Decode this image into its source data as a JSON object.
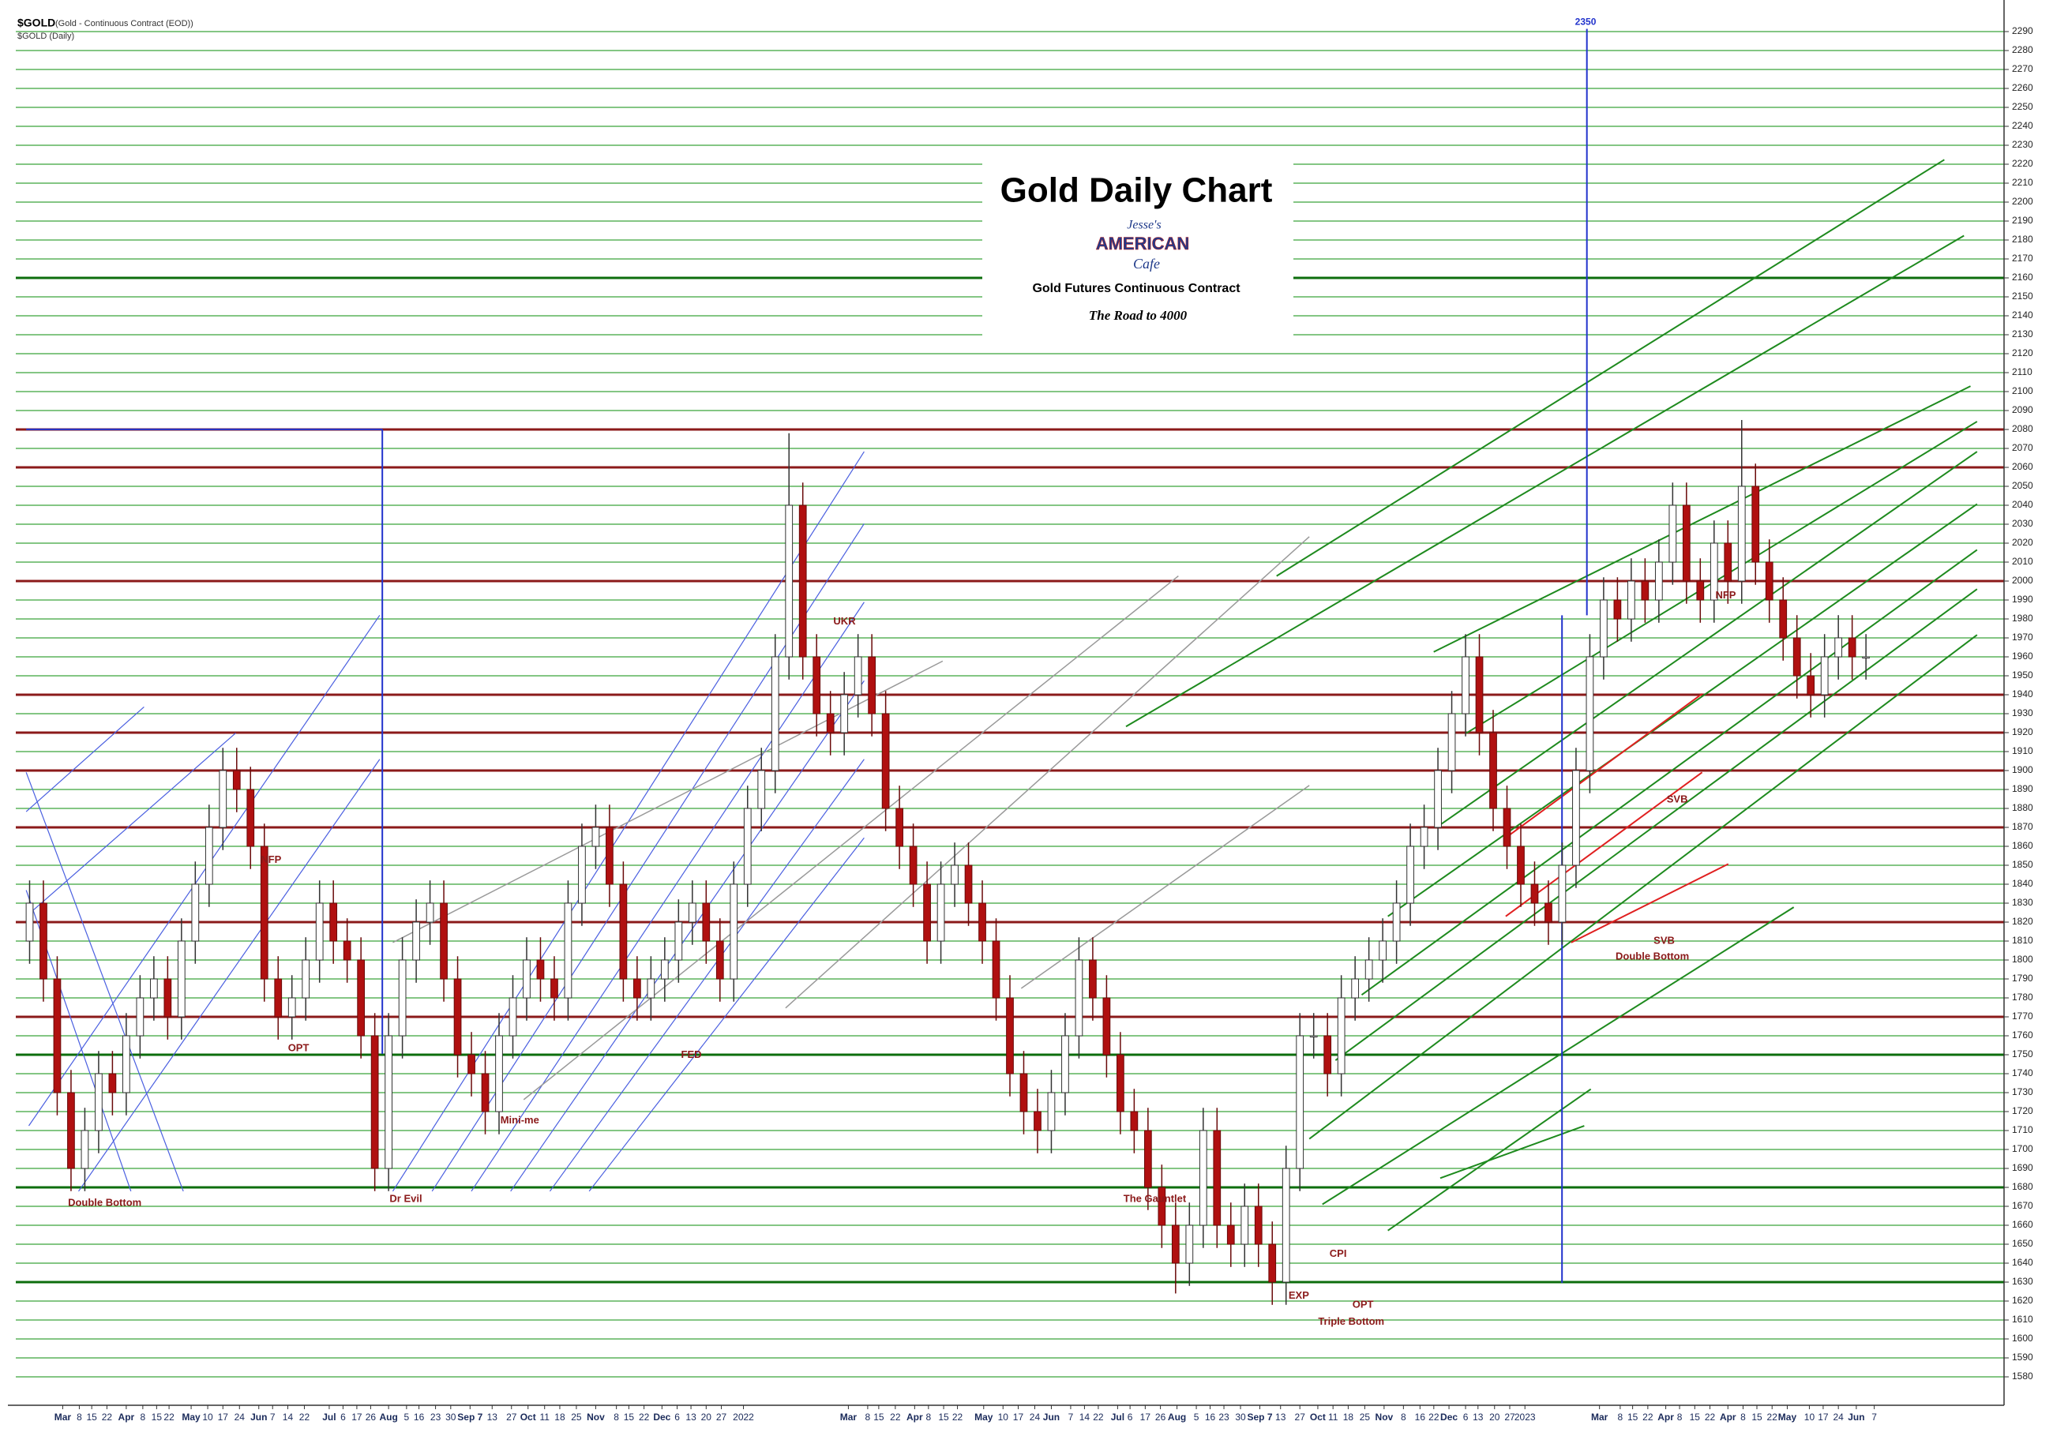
{
  "chart_data": {
    "type": "candlestick",
    "symbol": "$GOLD",
    "symbol_desc": "(Gold - Continuous Contract (EOD))",
    "symbol_period": "$GOLD (Daily)",
    "title": "Gold Daily Chart",
    "logo": [
      "Jesse's",
      "AMERICAN",
      "Cafe"
    ],
    "subtitle": "Gold Futures Continuous Contract",
    "tagline": "The Road to 4000",
    "marker_label": "2350",
    "up_color": "#ffffff",
    "down_color": "#b01010",
    "grid": true,
    "grid_color": "#3aa53a",
    "open": [
      1810,
      1830,
      1790,
      1730,
      1690,
      1710,
      1740,
      1730,
      1760,
      1780,
      1790,
      1770,
      1810,
      1840,
      1870,
      1900,
      1890,
      1860,
      1790,
      1770,
      1780,
      1800,
      1830,
      1810,
      1800,
      1760,
      1690,
      1760,
      1800,
      1820,
      1830,
      1790,
      1750,
      1740,
      1720,
      1760,
      1780,
      1800,
      1790,
      1780,
      1830,
      1860,
      1870,
      1840,
      1790,
      1780,
      1790,
      1800,
      1820,
      1830,
      1810,
      1790,
      1840,
      1880,
      1900,
      1960,
      2040,
      1960,
      1930,
      1920,
      1940,
      1960,
      1930,
      1880,
      1860,
      1840,
      1810,
      1840,
      1850,
      1830,
      1810,
      1780,
      1740,
      1720,
      1710,
      1730,
      1760,
      1800,
      1780,
      1750,
      1720,
      1710,
      1680,
      1660,
      1640,
      1660,
      1710,
      1660,
      1650,
      1670,
      1650,
      1630,
      1690,
      1760,
      1760,
      1740,
      1780,
      1790,
      1800,
      1810,
      1830,
      1860,
      1870,
      1900,
      1930,
      1960,
      1920,
      1880,
      1860,
      1840,
      1830,
      1820,
      1850,
      1900,
      1960,
      1990,
      1980,
      2000,
      1990,
      2010,
      2040,
      2000,
      1990,
      2020,
      2000,
      2050,
      2010,
      1990,
      1970,
      1950,
      1940,
      1960,
      1970,
      1960
    ],
    "high": [
      1842,
      1842,
      1802,
      1742,
      1722,
      1752,
      1752,
      1772,
      1792,
      1802,
      1802,
      1822,
      1852,
      1882,
      1912,
      1912,
      1902,
      1872,
      1802,
      1792,
      1812,
      1842,
      1842,
      1822,
      1812,
      1772,
      1772,
      1812,
      1832,
      1842,
      1842,
      1802,
      1762,
      1752,
      1772,
      1792,
      1812,
      1812,
      1802,
      1842,
      1872,
      1882,
      1882,
      1852,
      1802,
      1802,
      1812,
      1832,
      1842,
      1842,
      1822,
      1852,
      1892,
      1912,
      1972,
      2078,
      2052,
      1972,
      1942,
      1952,
      1972,
      1972,
      1942,
      1892,
      1872,
      1852,
      1852,
      1862,
      1862,
      1842,
      1822,
      1792,
      1752,
      1732,
      1742,
      1772,
      1812,
      1812,
      1792,
      1762,
      1732,
      1722,
      1692,
      1672,
      1672,
      1722,
      1722,
      1672,
      1682,
      1682,
      1662,
      1702,
      1772,
      1772,
      1772,
      1792,
      1802,
      1812,
      1822,
      1842,
      1872,
      1882,
      1912,
      1942,
      1972,
      1972,
      1932,
      1892,
      1872,
      1852,
      1842,
      1862,
      1912,
      1972,
      2002,
      2002,
      2012,
      2012,
      2022,
      2052,
      2052,
      2012,
      2032,
      2032,
      2085,
      2062,
      2022,
      2002,
      1982,
      1962,
      1972,
      1982,
      1982,
      1972
    ],
    "low": [
      1798,
      1778,
      1718,
      1678,
      1678,
      1698,
      1718,
      1718,
      1748,
      1768,
      1758,
      1758,
      1798,
      1828,
      1858,
      1878,
      1848,
      1778,
      1758,
      1758,
      1768,
      1788,
      1798,
      1788,
      1748,
      1678,
      1678,
      1748,
      1788,
      1808,
      1778,
      1738,
      1728,
      1708,
      1708,
      1748,
      1768,
      1778,
      1768,
      1768,
      1818,
      1848,
      1828,
      1778,
      1768,
      1768,
      1778,
      1788,
      1808,
      1798,
      1778,
      1778,
      1828,
      1868,
      1888,
      1948,
      1948,
      1918,
      1908,
      1908,
      1928,
      1918,
      1868,
      1848,
      1828,
      1798,
      1798,
      1828,
      1818,
      1798,
      1768,
      1728,
      1708,
      1698,
      1698,
      1718,
      1748,
      1768,
      1738,
      1708,
      1698,
      1668,
      1648,
      1624,
      1628,
      1648,
      1648,
      1638,
      1638,
      1638,
      1618,
      1618,
      1678,
      1748,
      1728,
      1728,
      1768,
      1778,
      1788,
      1798,
      1818,
      1848,
      1858,
      1888,
      1918,
      1908,
      1868,
      1848,
      1828,
      1818,
      1808,
      1808,
      1838,
      1888,
      1948,
      1968,
      1968,
      1978,
      1978,
      1998,
      1988,
      1978,
      1978,
      1988,
      1988,
      1998,
      1978,
      1958,
      1938,
      1928,
      1928,
      1948,
      1948,
      1948
    ],
    "close": [
      1830,
      1790,
      1730,
      1690,
      1710,
      1740,
      1730,
      1760,
      1780,
      1790,
      1770,
      1810,
      1840,
      1870,
      1900,
      1890,
      1860,
      1790,
      1770,
      1780,
      1800,
      1830,
      1810,
      1800,
      1760,
      1690,
      1760,
      1800,
      1820,
      1830,
      1790,
      1750,
      1740,
      1720,
      1760,
      1780,
      1800,
      1790,
      1780,
      1830,
      1860,
      1870,
      1840,
      1790,
      1780,
      1790,
      1800,
      1820,
      1830,
      1810,
      1790,
      1840,
      1880,
      1900,
      1960,
      2040,
      1960,
      1930,
      1920,
      1940,
      1960,
      1930,
      1880,
      1860,
      1840,
      1810,
      1840,
      1850,
      1830,
      1810,
      1780,
      1740,
      1720,
      1710,
      1730,
      1760,
      1800,
      1780,
      1750,
      1720,
      1710,
      1680,
      1660,
      1640,
      1660,
      1710,
      1660,
      1650,
      1670,
      1650,
      1630,
      1690,
      1760,
      1760,
      1740,
      1780,
      1790,
      1800,
      1810,
      1830,
      1860,
      1870,
      1900,
      1930,
      1960,
      1920,
      1880,
      1860,
      1840,
      1830,
      1820,
      1850,
      1900,
      1960,
      1990,
      1980,
      2000,
      1990,
      2010,
      2040,
      2000,
      1990,
      2020,
      2000,
      2050,
      2010,
      1990,
      1970,
      1950,
      1940,
      1960,
      1970,
      1960,
      1960
    ],
    "xlim": [
      -1,
      143
    ],
    "xticks": [
      {
        "value": 2.4,
        "label": "Mar"
      },
      {
        "value": 3.6,
        "label": "8"
      },
      {
        "value": 4.5,
        "label": "15"
      },
      {
        "value": 5.6,
        "label": "22"
      },
      {
        "value": 7.0,
        "label": "Apr"
      },
      {
        "value": 8.2,
        "label": "8"
      },
      {
        "value": 9.2,
        "label": "15"
      },
      {
        "value": 10.1,
        "label": "22"
      },
      {
        "value": 11.7,
        "label": "May"
      },
      {
        "value": 12.9,
        "label": "10"
      },
      {
        "value": 14.0,
        "label": "17"
      },
      {
        "value": 15.2,
        "label": "24"
      },
      {
        "value": 16.6,
        "label": "Jun"
      },
      {
        "value": 17.6,
        "label": "7"
      },
      {
        "value": 18.7,
        "label": "14"
      },
      {
        "value": 19.9,
        "label": "22"
      },
      {
        "value": 21.7,
        "label": "Jul"
      },
      {
        "value": 22.7,
        "label": "6"
      },
      {
        "value": 23.7,
        "label": "17"
      },
      {
        "value": 24.7,
        "label": "26"
      },
      {
        "value": 26.0,
        "label": "Aug"
      },
      {
        "value": 27.3,
        "label": "5"
      },
      {
        "value": 28.2,
        "label": "16"
      },
      {
        "value": 29.4,
        "label": "23"
      },
      {
        "value": 30.5,
        "label": "30"
      },
      {
        "value": 31.9,
        "label": "Sep 7"
      },
      {
        "value": 33.5,
        "label": "13"
      },
      {
        "value": 34.9,
        "label": "27"
      },
      {
        "value": 36.1,
        "label": "Oct"
      },
      {
        "value": 37.3,
        "label": "11"
      },
      {
        "value": 38.4,
        "label": "18"
      },
      {
        "value": 39.6,
        "label": "25"
      },
      {
        "value": 41.0,
        "label": "Nov"
      },
      {
        "value": 42.5,
        "label": "8"
      },
      {
        "value": 43.4,
        "label": "15"
      },
      {
        "value": 44.5,
        "label": "22"
      },
      {
        "value": 45.8,
        "label": "Dec"
      },
      {
        "value": 46.9,
        "label": "6"
      },
      {
        "value": 47.9,
        "label": "13"
      },
      {
        "value": 49.0,
        "label": "20"
      },
      {
        "value": 50.1,
        "label": "27"
      },
      {
        "value": 51.7,
        "label": "2022"
      },
      {
        "value": 59.3,
        "label": "Mar"
      },
      {
        "value": 60.7,
        "label": "8"
      },
      {
        "value": 61.5,
        "label": "15"
      },
      {
        "value": 62.7,
        "label": "22"
      },
      {
        "value": 64.1,
        "label": "Apr"
      },
      {
        "value": 65.1,
        "label": "8"
      },
      {
        "value": 66.2,
        "label": "15"
      },
      {
        "value": 67.2,
        "label": "22"
      },
      {
        "value": 69.1,
        "label": "May"
      },
      {
        "value": 70.5,
        "label": "10"
      },
      {
        "value": 71.6,
        "label": "17"
      },
      {
        "value": 72.8,
        "label": "24"
      },
      {
        "value": 74.0,
        "label": "Jun"
      },
      {
        "value": 75.4,
        "label": "7"
      },
      {
        "value": 76.4,
        "label": "14"
      },
      {
        "value": 77.4,
        "label": "22"
      },
      {
        "value": 78.8,
        "label": "Jul"
      },
      {
        "value": 79.7,
        "label": "6"
      },
      {
        "value": 80.8,
        "label": "17"
      },
      {
        "value": 81.9,
        "label": "26"
      },
      {
        "value": 83.1,
        "label": "Aug"
      },
      {
        "value": 84.5,
        "label": "5"
      },
      {
        "value": 85.5,
        "label": "16"
      },
      {
        "value": 86.5,
        "label": "23"
      },
      {
        "value": 87.7,
        "label": "30"
      },
      {
        "value": 89.1,
        "label": "Sep 7"
      },
      {
        "value": 90.6,
        "label": "13"
      },
      {
        "value": 92.0,
        "label": "27"
      },
      {
        "value": 93.3,
        "label": "Oct"
      },
      {
        "value": 94.4,
        "label": "11"
      },
      {
        "value": 95.5,
        "label": "18"
      },
      {
        "value": 96.7,
        "label": "25"
      },
      {
        "value": 98.1,
        "label": "Nov"
      },
      {
        "value": 99.5,
        "label": "8"
      },
      {
        "value": 100.7,
        "label": "16"
      },
      {
        "value": 101.7,
        "label": "22"
      },
      {
        "value": 102.8,
        "label": "Dec"
      },
      {
        "value": 104.0,
        "label": "6"
      },
      {
        "value": 104.9,
        "label": "13"
      },
      {
        "value": 106.1,
        "label": "20"
      },
      {
        "value": 107.2,
        "label": "27"
      },
      {
        "value": 108.3,
        "label": "2023"
      },
      {
        "value": 113.7,
        "label": "Mar"
      },
      {
        "value": 115.2,
        "label": "8"
      },
      {
        "value": 116.1,
        "label": "15"
      },
      {
        "value": 117.2,
        "label": "22"
      },
      {
        "value": 118.5,
        "label": "Apr"
      },
      {
        "value": 119.5,
        "label": "8"
      },
      {
        "value": 120.6,
        "label": "15"
      },
      {
        "value": 121.7,
        "label": "22"
      },
      {
        "value": 123.0,
        "label": "Apr"
      },
      {
        "value": 124.1,
        "label": "8"
      },
      {
        "value": 125.1,
        "label": "15"
      },
      {
        "value": 126.2,
        "label": "22"
      },
      {
        "value": 127.3,
        "label": "May"
      },
      {
        "value": 128.9,
        "label": "10"
      },
      {
        "value": 129.9,
        "label": "17"
      },
      {
        "value": 131.0,
        "label": "24"
      },
      {
        "value": 132.3,
        "label": "Jun"
      },
      {
        "value": 133.6,
        "label": "7"
      }
    ],
    "ylim": [
      1565,
      2300
    ],
    "yticks": [
      1580,
      1590,
      1600,
      1610,
      1620,
      1630,
      1640,
      1650,
      1660,
      1670,
      1680,
      1690,
      1700,
      1710,
      1720,
      1730,
      1740,
      1750,
      1760,
      1770,
      1780,
      1790,
      1800,
      1810,
      1820,
      1830,
      1840,
      1850,
      1860,
      1870,
      1880,
      1890,
      1900,
      1910,
      1920,
      1930,
      1940,
      1950,
      1960,
      1970,
      1980,
      1990,
      2000,
      2010,
      2020,
      2030,
      2040,
      2050,
      2060,
      2070,
      2080,
      2090,
      2100,
      2110,
      2120,
      2130,
      2140,
      2150,
      2160,
      2170,
      2180,
      2190,
      2200,
      2210,
      2220,
      2230,
      2240,
      2250,
      2260,
      2270,
      2280,
      2290
    ],
    "levels": [
      {
        "value": 1630,
        "color": "#0d6e0d"
      },
      {
        "value": 1680,
        "color": "#0d6e0d"
      },
      {
        "value": 1750,
        "color": "#0d6e0d"
      },
      {
        "value": 2160,
        "color": "#0d6e0d"
      },
      {
        "value": 1770,
        "color": "#8b1a1a"
      },
      {
        "value": 1820,
        "color": "#8b1a1a"
      },
      {
        "value": 1870,
        "color": "#8b1a1a"
      },
      {
        "value": 1900,
        "color": "#8b1a1a"
      },
      {
        "value": 1920,
        "color": "#8b1a1a"
      },
      {
        "value": 1940,
        "color": "#8b1a1a"
      },
      {
        "value": 2000,
        "color": "#8b1a1a"
      },
      {
        "value": 2060,
        "color": "#8b1a1a"
      },
      {
        "value": 2080,
        "color": "#8b1a1a"
      }
    ],
    "annotations": [
      "Double Bottom",
      "Dr Evil",
      "Mini-me",
      "The Gauntlet",
      "EXP",
      "OPT",
      "Triple Bottom",
      "CPI",
      "SVB",
      "Double Bottom",
      "SVB",
      "NFP",
      "FED",
      "UKR",
      "OPT",
      "NFP"
    ]
  }
}
